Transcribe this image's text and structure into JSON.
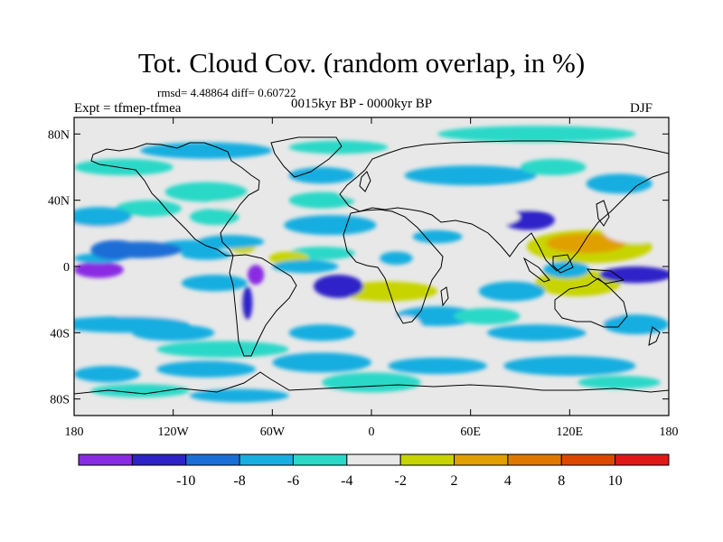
{
  "title": "Tot. Cloud Cov. (random overlap, in %)",
  "stats": "rmsd= 4.48864 diff= 0.60722",
  "experiment": "Expt = tfmep-tfmea",
  "period": "0015kyr BP - 0000kyr BP",
  "season": "DJF",
  "map": {
    "lon_range": [
      -180,
      180
    ],
    "lat_range": [
      -90,
      90
    ],
    "x_ticks": [
      {
        "label": "180",
        "lon": -180
      },
      {
        "label": "120W",
        "lon": -120
      },
      {
        "label": "60W",
        "lon": -60
      },
      {
        "label": "0",
        "lon": 0
      },
      {
        "label": "60E",
        "lon": 60
      },
      {
        "label": "120E",
        "lon": 120
      },
      {
        "label": "180",
        "lon": 180
      }
    ],
    "y_ticks": [
      {
        "label": "80N",
        "lat": 80
      },
      {
        "label": "40N",
        "lat": 40
      },
      {
        "label": "0",
        "lat": 0
      },
      {
        "label": "40S",
        "lat": -40
      },
      {
        "label": "80S",
        "lat": -80
      }
    ],
    "background_color": "#e8e8e8",
    "anomalies": [
      {
        "lon": 95,
        "lat": 28,
        "rx": 16,
        "ry": 6,
        "level": 1
      },
      {
        "lon": 132,
        "lat": 12,
        "rx": 38,
        "ry": 10,
        "level": 6
      },
      {
        "lon": 130,
        "lat": 14,
        "rx": 24,
        "ry": 6,
        "level": 7
      },
      {
        "lon": 160,
        "lat": 22,
        "rx": 20,
        "ry": 8,
        "level": 5
      },
      {
        "lon": 125,
        "lat": -10,
        "rx": 26,
        "ry": 8,
        "level": 6
      },
      {
        "lon": 135,
        "lat": -30,
        "rx": 15,
        "ry": 8,
        "level": 5
      },
      {
        "lon": 160,
        "lat": -5,
        "rx": 22,
        "ry": 5,
        "level": 1
      },
      {
        "lon": 118,
        "lat": -2,
        "rx": 14,
        "ry": 5,
        "level": 3
      },
      {
        "lon": 85,
        "lat": -15,
        "rx": 20,
        "ry": 6,
        "level": 3
      },
      {
        "lon": 85,
        "lat": 40,
        "rx": 40,
        "ry": 6,
        "level": 5
      },
      {
        "lon": 60,
        "lat": 30,
        "rx": 30,
        "ry": 7,
        "level": 5
      },
      {
        "lon": 40,
        "lat": 18,
        "rx": 15,
        "ry": 4,
        "level": 3
      },
      {
        "lon": 10,
        "lat": -15,
        "rx": 30,
        "ry": 6,
        "level": 6
      },
      {
        "lon": 15,
        "lat": 5,
        "rx": 10,
        "ry": 4,
        "level": 3
      },
      {
        "lon": -20,
        "lat": -12,
        "rx": 15,
        "ry": 7,
        "level": 1
      },
      {
        "lon": -30,
        "lat": 8,
        "rx": 20,
        "ry": 4,
        "level": 4
      },
      {
        "lon": -50,
        "lat": 5,
        "rx": 12,
        "ry": 4,
        "level": 6
      },
      {
        "lon": -25,
        "lat": 25,
        "rx": 28,
        "ry": 6,
        "level": 3
      },
      {
        "lon": -70,
        "lat": -5,
        "rx": 5,
        "ry": 6,
        "level": 0
      },
      {
        "lon": -75,
        "lat": -22,
        "rx": 3,
        "ry": 10,
        "level": 1
      },
      {
        "lon": -78,
        "lat": 12,
        "rx": 8,
        "ry": 4,
        "level": 6
      },
      {
        "lon": -100,
        "lat": 7,
        "rx": 15,
        "ry": 3,
        "level": 3
      },
      {
        "lon": -110,
        "lat": 12,
        "rx": 20,
        "ry": 4,
        "level": 3
      },
      {
        "lon": -145,
        "lat": -20,
        "rx": 40,
        "ry": 6,
        "level": 5
      },
      {
        "lon": -125,
        "lat": -28,
        "rx": 30,
        "ry": 5,
        "level": 5
      },
      {
        "lon": -165,
        "lat": -2,
        "rx": 15,
        "ry": 5,
        "level": 0
      },
      {
        "lon": -165,
        "lat": 5,
        "rx": 15,
        "ry": 3,
        "level": 3
      },
      {
        "lon": -140,
        "lat": 10,
        "rx": 25,
        "ry": 5,
        "level": 2
      },
      {
        "lon": -150,
        "lat": -35,
        "rx": 40,
        "ry": 5,
        "level": 3
      },
      {
        "lon": -160,
        "lat": 25,
        "rx": 25,
        "ry": 7,
        "level": 5
      },
      {
        "lon": -135,
        "lat": 35,
        "rx": 20,
        "ry": 5,
        "level": 4
      },
      {
        "lon": -75,
        "lat": 38,
        "rx": 22,
        "ry": 6,
        "level": 5
      },
      {
        "lon": -95,
        "lat": 30,
        "rx": 15,
        "ry": 5,
        "level": 4
      },
      {
        "lon": -100,
        "lat": 45,
        "rx": 25,
        "ry": 6,
        "level": 4
      },
      {
        "lon": -30,
        "lat": 40,
        "rx": 20,
        "ry": 5,
        "level": 4
      },
      {
        "lon": -30,
        "lat": 55,
        "rx": 20,
        "ry": 5,
        "level": 3
      },
      {
        "lon": 0,
        "lat": 45,
        "rx": 20,
        "ry": 5,
        "level": 5
      },
      {
        "lon": 60,
        "lat": 55,
        "rx": 40,
        "ry": 6,
        "level": 3
      },
      {
        "lon": 150,
        "lat": 50,
        "rx": 20,
        "ry": 6,
        "level": 3
      },
      {
        "lon": 110,
        "lat": 60,
        "rx": 20,
        "ry": 5,
        "level": 4
      },
      {
        "lon": -150,
        "lat": 60,
        "rx": 30,
        "ry": 5,
        "level": 4
      },
      {
        "lon": -100,
        "lat": 70,
        "rx": 40,
        "ry": 5,
        "level": 3
      },
      {
        "lon": -20,
        "lat": 72,
        "rx": 30,
        "ry": 4,
        "level": 4
      },
      {
        "lon": 100,
        "lat": 80,
        "rx": 60,
        "ry": 5,
        "level": 4
      },
      {
        "lon": -155,
        "lat": 10,
        "rx": 15,
        "ry": 6,
        "level": 2
      },
      {
        "lon": -165,
        "lat": 30,
        "rx": 20,
        "ry": 6,
        "level": 3
      },
      {
        "lon": -85,
        "lat": 15,
        "rx": 20,
        "ry": 4,
        "level": 3
      },
      {
        "lon": -95,
        "lat": -10,
        "rx": 20,
        "ry": 5,
        "level": 3
      },
      {
        "lon": -120,
        "lat": -40,
        "rx": 25,
        "ry": 5,
        "level": 3
      },
      {
        "lon": -90,
        "lat": -50,
        "rx": 40,
        "ry": 5,
        "level": 4
      },
      {
        "lon": -30,
        "lat": -40,
        "rx": 20,
        "ry": 5,
        "level": 3
      },
      {
        "lon": -40,
        "lat": 0,
        "rx": 20,
        "ry": 4,
        "level": 3
      },
      {
        "lon": 40,
        "lat": -30,
        "rx": 25,
        "ry": 6,
        "level": 3
      },
      {
        "lon": 20,
        "lat": -35,
        "rx": 10,
        "ry": 5,
        "level": 5
      },
      {
        "lon": 70,
        "lat": -30,
        "rx": 20,
        "ry": 5,
        "level": 4
      },
      {
        "lon": 160,
        "lat": -35,
        "rx": 20,
        "ry": 6,
        "level": 3
      },
      {
        "lon": 100,
        "lat": -40,
        "rx": 30,
        "ry": 5,
        "level": 3
      },
      {
        "lon": -160,
        "lat": -65,
        "rx": 20,
        "ry": 5,
        "level": 3
      },
      {
        "lon": -100,
        "lat": -62,
        "rx": 30,
        "ry": 5,
        "level": 3
      },
      {
        "lon": -30,
        "lat": -58,
        "rx": 30,
        "ry": 6,
        "level": 3
      },
      {
        "lon": 40,
        "lat": -60,
        "rx": 30,
        "ry": 5,
        "level": 3
      },
      {
        "lon": 120,
        "lat": -60,
        "rx": 40,
        "ry": 6,
        "level": 3
      },
      {
        "lon": 0,
        "lat": -70,
        "rx": 30,
        "ry": 6,
        "level": 4
      },
      {
        "lon": -140,
        "lat": -75,
        "rx": 30,
        "ry": 4,
        "level": 4
      },
      {
        "lon": 150,
        "lat": -70,
        "rx": 25,
        "ry": 4,
        "level": 4
      },
      {
        "lon": -80,
        "lat": -78,
        "rx": 30,
        "ry": 4,
        "level": 3
      }
    ]
  },
  "colorbar": {
    "colors": [
      "#8a2be2",
      "#2e22c8",
      "#1a6ed6",
      "#19aee0",
      "#2ad8c8",
      "#e8e8e8",
      "#c8d400",
      "#e0a000",
      "#e07800",
      "#dd4800",
      "#e01818"
    ],
    "labels": [
      "-10",
      "-8",
      "-6",
      "-4",
      "-2",
      "2",
      "4",
      "8",
      "10"
    ]
  }
}
